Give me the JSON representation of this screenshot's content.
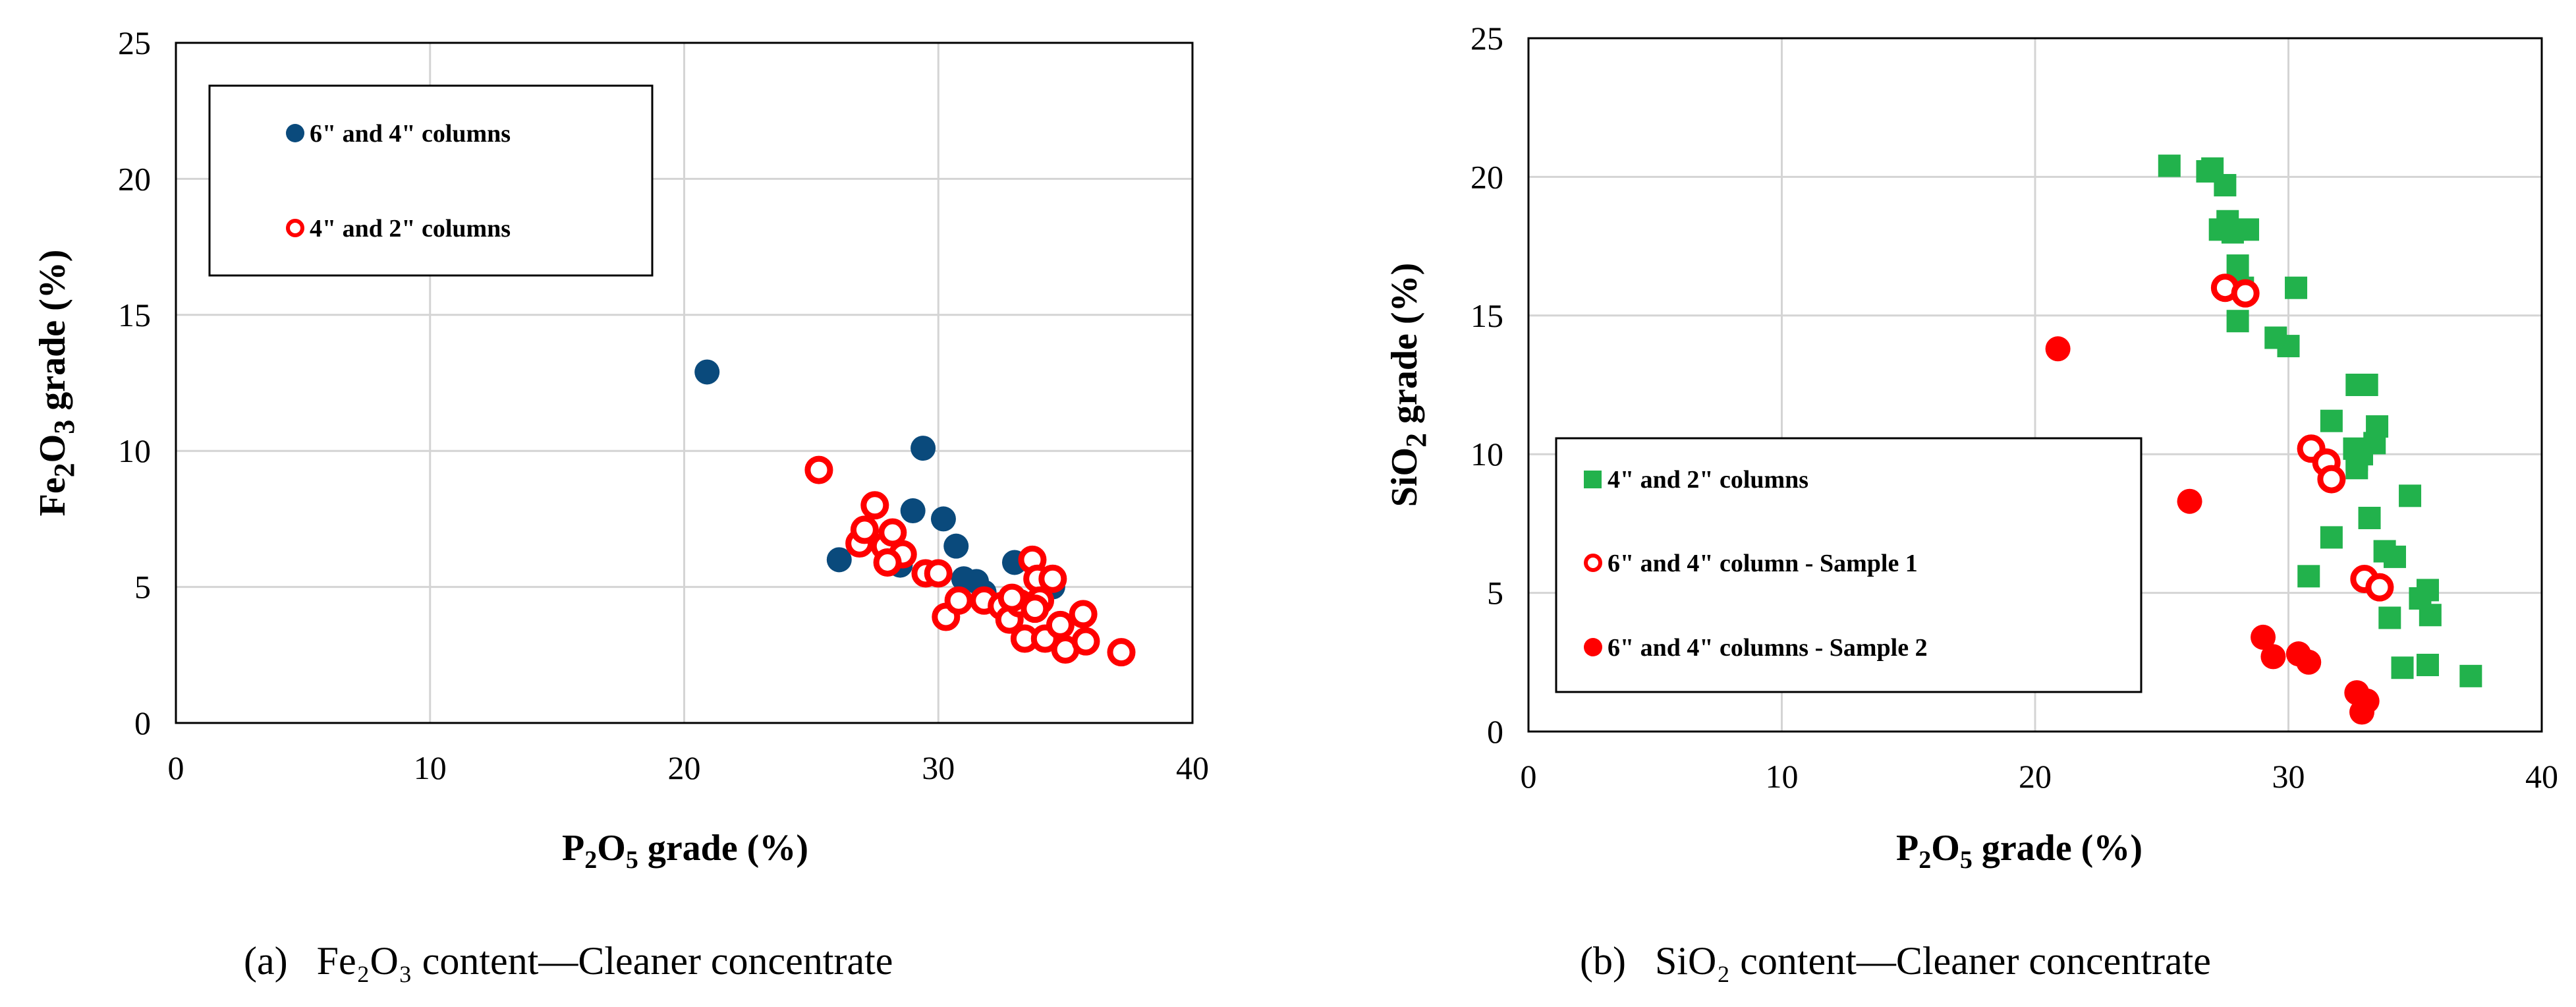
{
  "chart_data": [
    {
      "type": "scatter",
      "panel": "(a)",
      "caption_prefix": "(a)",
      "caption": "Fe₂O₃ content—Cleaner concentrate",
      "xlabel": "P2O5 grade (%)",
      "ylabel": "Fe2O3 grade (%)",
      "xlim": [
        0,
        40
      ],
      "ylim": [
        0,
        25
      ],
      "xticks": [
        0,
        10,
        20,
        30,
        40
      ],
      "yticks": [
        0,
        5,
        10,
        15,
        20,
        25
      ],
      "grid": true,
      "legend_position": "top-left",
      "series": [
        {
          "name": "6\" and 4\" columns",
          "marker": "filled-circle",
          "color": "#0a4a7c",
          "x": [
            20.9,
            26.1,
            29.4,
            29.0,
            30.2,
            30.7,
            31.5,
            31.0,
            33.0,
            28.5,
            31.8,
            34.5
          ],
          "y": [
            12.9,
            6.0,
            10.1,
            7.8,
            7.5,
            6.5,
            5.2,
            5.3,
            5.9,
            5.8,
            4.8,
            5.0
          ]
        },
        {
          "name": "4\" and 2\" columns",
          "marker": "open-circle",
          "color": "#ff0000",
          "x": [
            25.3,
            26.9,
            27.1,
            27.5,
            27.9,
            28.2,
            28.6,
            28.0,
            29.5,
            30.0,
            30.3,
            30.8,
            31.8,
            32.5,
            32.8,
            33.2,
            33.4,
            33.7,
            33.9,
            34.2,
            34.5,
            34.8,
            35.0,
            35.7,
            35.8,
            37.2,
            34.0,
            33.8,
            32.9
          ],
          "y": [
            9.3,
            6.6,
            7.1,
            8.0,
            6.5,
            7.0,
            6.2,
            5.9,
            5.5,
            5.5,
            3.9,
            4.5,
            4.5,
            4.3,
            3.8,
            4.4,
            3.1,
            6.0,
            5.3,
            3.1,
            5.3,
            3.6,
            2.7,
            4.0,
            3.0,
            2.6,
            4.5,
            4.2,
            4.6
          ]
        }
      ]
    },
    {
      "type": "scatter",
      "panel": "(b)",
      "caption_prefix": "(b)",
      "caption": "SiO₂ content—Cleaner concentrate",
      "xlabel": "P2O5 grade (%)",
      "ylabel": "SiO2 grade (%)",
      "xlim": [
        0,
        40
      ],
      "ylim": [
        0,
        25
      ],
      "xticks": [
        0,
        10,
        20,
        30,
        40
      ],
      "yticks": [
        0,
        5,
        10,
        15,
        20,
        25
      ],
      "grid": true,
      "legend_position": "middle-left",
      "series": [
        {
          "name": "4\" and 2\" columns",
          "marker": "filled-square",
          "color": "#22b24c",
          "x": [
            25.3,
            26.8,
            27.0,
            27.5,
            27.3,
            27.6,
            27.8,
            28.4,
            28.0,
            28.2,
            28.0,
            30.3,
            29.5,
            30.0,
            32.7,
            33.1,
            31.7,
            32.6,
            32.9,
            33.5,
            33.4,
            32.7,
            32.7,
            31.7,
            34.8,
            33.2,
            33.8,
            34.2,
            30.8,
            35.5,
            35.2,
            35.6,
            34.0,
            34.5,
            35.5,
            37.2
          ],
          "y": [
            20.4,
            20.2,
            20.3,
            19.7,
            18.1,
            18.4,
            18.0,
            18.1,
            16.8,
            16.0,
            14.8,
            16.0,
            14.2,
            13.9,
            12.5,
            12.5,
            11.2,
            10.2,
            10.0,
            11.0,
            10.4,
            9.5,
            9.8,
            7.0,
            8.5,
            7.7,
            6.5,
            6.3,
            5.6,
            5.1,
            4.8,
            4.2,
            4.1,
            2.3,
            2.4,
            2.0
          ]
        },
        {
          "name": "6\" and 4\" column - Sample 1",
          "marker": "open-circle",
          "color": "#ff0000",
          "x": [
            27.5,
            28.3,
            30.9,
            31.5,
            31.7,
            33.0,
            33.6
          ],
          "y": [
            16.0,
            15.8,
            10.2,
            9.7,
            9.1,
            5.5,
            5.2
          ]
        },
        {
          "name": "6\" and 4\" columns - Sample 2",
          "marker": "filled-circle",
          "color": "#ff0000",
          "x": [
            20.9,
            26.1,
            29.0,
            29.4,
            30.4,
            30.8,
            32.7,
            32.9,
            33.1
          ],
          "y": [
            13.8,
            8.3,
            3.4,
            2.7,
            2.8,
            2.5,
            1.4,
            0.7,
            1.1
          ]
        }
      ]
    }
  ]
}
